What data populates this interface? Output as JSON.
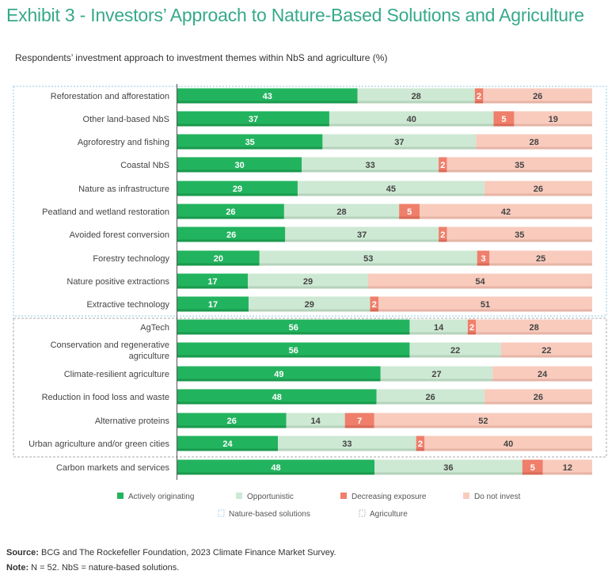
{
  "title": "Exhibit 3 - Investors’ Approach to Nature-Based Solutions and Agriculture",
  "subtitle": "Respondents’ investment approach to investment themes within NbS and agriculture (%)",
  "footer": {
    "source_label": "Source:",
    "source_text": " BCG and The Rockefeller Foundation, 2023 Climate Finance Market Survey.",
    "note_label": "Note:",
    "note_text": " N = 52. NbS = nature-based solutions."
  },
  "colors": {
    "title": "#36a98a",
    "actively_originating": "#22b35e",
    "opportunistic": "#cde8d3",
    "decreasing_exposure": "#ef7f6b",
    "do_not_invest": "#f8cbbd",
    "nbs_box": "#8ecae6",
    "agri_box": "#aaaaaa"
  },
  "chart_data": {
    "type": "bar",
    "orientation": "horizontal",
    "stacked": true,
    "title": "Respondents’ investment approach to investment themes within NbS and agriculture (%)",
    "xlabel": "",
    "ylabel": "",
    "xlim": [
      0,
      100
    ],
    "legend_position": "bottom",
    "legend": [
      "Actively originating",
      "Opportunistic",
      "Decreasing exposure",
      "Do not invest"
    ],
    "group_legend": [
      "Nature-based solutions",
      "Agriculture"
    ],
    "categories": [
      {
        "label": "Reforestation and afforestation",
        "group": "nbs"
      },
      {
        "label": "Other land-based NbS",
        "group": "nbs"
      },
      {
        "label": "Agroforestry and fishing",
        "group": "nbs"
      },
      {
        "label": "Coastal NbS",
        "group": "nbs"
      },
      {
        "label": "Nature as infrastructure",
        "group": "nbs"
      },
      {
        "label": "Peatland and wetland restoration",
        "group": "nbs"
      },
      {
        "label": "Avoided forest conversion",
        "group": "nbs"
      },
      {
        "label": "Forestry technology",
        "group": "nbs"
      },
      {
        "label": "Nature positive extractions",
        "group": "nbs"
      },
      {
        "label": "Extractive technology",
        "group": "nbs"
      },
      {
        "label": "AgTech",
        "group": "agri"
      },
      {
        "label": "Conservation and regenerative|agriculture",
        "group": "agri"
      },
      {
        "label": "Climate-resilient agriculture",
        "group": "agri"
      },
      {
        "label": "Reduction in food loss and waste",
        "group": "agri"
      },
      {
        "label": "Alternative proteins",
        "group": "agri"
      },
      {
        "label": "Urban agriculture and/or green cities",
        "group": "agri"
      },
      {
        "label": "Carbon markets and services",
        "group": "none"
      }
    ],
    "series": [
      {
        "name": "Actively originating",
        "values": [
          43,
          37,
          35,
          30,
          29,
          26,
          26,
          20,
          17,
          17,
          56,
          56,
          49,
          48,
          26,
          24,
          48
        ]
      },
      {
        "name": "Opportunistic",
        "values": [
          28,
          40,
          37,
          33,
          45,
          28,
          37,
          53,
          29,
          29,
          14,
          22,
          27,
          26,
          14,
          33,
          36
        ]
      },
      {
        "name": "Decreasing exposure",
        "values": [
          2,
          5,
          0,
          2,
          0,
          5,
          2,
          3,
          0,
          2,
          2,
          0,
          0,
          0,
          7,
          2,
          5
        ]
      },
      {
        "name": "Do not invest",
        "values": [
          26,
          19,
          28,
          35,
          26,
          42,
          35,
          25,
          54,
          51,
          28,
          22,
          24,
          26,
          52,
          40,
          12
        ]
      }
    ]
  }
}
